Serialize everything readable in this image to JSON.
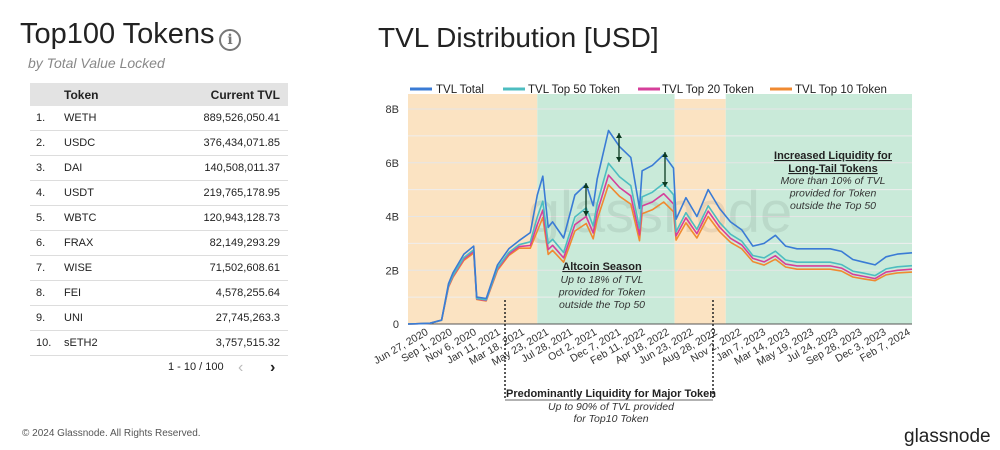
{
  "left_panel": {
    "title": "Top100 Tokens",
    "info_icon": "info-icon",
    "subtitle": "by Total Value Locked",
    "table": {
      "headers": [
        "",
        "Token",
        "Current TVL"
      ],
      "rows": [
        [
          "1.",
          "WETH",
          "889,526,050.41"
        ],
        [
          "2.",
          "USDC",
          "376,434,071.85"
        ],
        [
          "3.",
          "DAI",
          "140,508,011.37"
        ],
        [
          "4.",
          "USDT",
          "219,765,178.95"
        ],
        [
          "5.",
          "WBTC",
          "120,943,128.73"
        ],
        [
          "6.",
          "FRAX",
          "82,149,293.29"
        ],
        [
          "7.",
          "WISE",
          "71,502,608.61"
        ],
        [
          "8.",
          "FEI",
          "4,578,255.64"
        ],
        [
          "9.",
          "UNI",
          "27,745,263.3"
        ],
        [
          "10.",
          "sETH2",
          "3,757,515.32"
        ]
      ]
    },
    "pagination": {
      "label": "1 - 10 / 100",
      "prev": "‹",
      "next": "›"
    }
  },
  "footer": {
    "copyright": "© 2024 Glassnode. All Rights Reserved.",
    "logo": "glassnode"
  },
  "chart_data": {
    "type": "line",
    "title": "TVL Distribution [USD]",
    "watermark": "glassnode",
    "legend_position": "top",
    "grid": true,
    "colors": {
      "TVL Total": "#3a7bd5",
      "TVL Top 50 Token": "#4dbdc0",
      "TVL Top 20 Token": "#d63f9a",
      "TVL Top 10 Token": "#f08a30",
      "orange_band": "#fbe3c2",
      "green_band": "#c9ead9"
    },
    "ylim": [
      0,
      8
    ],
    "y_ticks": [
      {
        "v": 0,
        "label": "0"
      },
      {
        "v": 2,
        "label": "2B"
      },
      {
        "v": 4,
        "label": "4B"
      },
      {
        "v": 6,
        "label": "6B"
      },
      {
        "v": 8,
        "label": "8B"
      }
    ],
    "x_range": [
      "2020-05-01",
      "2024-02-10"
    ],
    "x_ticks": [
      {
        "d": "2020-06-27",
        "label": "Jun 27, 2020"
      },
      {
        "d": "2020-09-01",
        "label": "Sep 1, 2020"
      },
      {
        "d": "2020-11-06",
        "label": "Nov 6, 2020"
      },
      {
        "d": "2021-01-11",
        "label": "Jan 11, 2021"
      },
      {
        "d": "2021-03-18",
        "label": "Mar 18, 2021"
      },
      {
        "d": "2021-05-23",
        "label": "May 23, 2021"
      },
      {
        "d": "2021-07-28",
        "label": "Jul 28, 2021"
      },
      {
        "d": "2021-10-02",
        "label": "Oct 2, 2021"
      },
      {
        "d": "2021-12-07",
        "label": "Dec 7, 2021"
      },
      {
        "d": "2022-02-11",
        "label": "Feb 11, 2022"
      },
      {
        "d": "2022-04-18",
        "label": "Apr 18, 2022"
      },
      {
        "d": "2022-06-23",
        "label": "Jun 23, 2022"
      },
      {
        "d": "2022-08-28",
        "label": "Aug 28, 2022"
      },
      {
        "d": "2022-11-02",
        "label": "Nov 2, 2022"
      },
      {
        "d": "2023-01-07",
        "label": "Jan 7, 2023"
      },
      {
        "d": "2023-03-14",
        "label": "Mar 14, 2023"
      },
      {
        "d": "2023-05-19",
        "label": "May 19, 2023"
      },
      {
        "d": "2023-07-24",
        "label": "Jul 24, 2023"
      },
      {
        "d": "2023-09-28",
        "label": "Sep 28, 2023"
      },
      {
        "d": "2023-12-03",
        "label": "Dec 3, 2023"
      },
      {
        "d": "2024-02-07",
        "label": "Feb 7, 2024"
      }
    ],
    "bands": [
      {
        "from": "2020-05-01",
        "to": "2021-04-20",
        "color": "orange"
      },
      {
        "from": "2021-04-20",
        "to": "2022-05-01",
        "color": "green"
      },
      {
        "from": "2022-05-01",
        "to": "2022-09-18",
        "color": "orange"
      },
      {
        "from": "2022-09-18",
        "to": "2024-02-10",
        "color": "green"
      }
    ],
    "x": [
      "2020-05-01",
      "2020-06-01",
      "2020-07-01",
      "2020-08-01",
      "2020-08-20",
      "2020-09-01",
      "2020-10-01",
      "2020-10-28",
      "2020-11-05",
      "2020-12-01",
      "2021-01-01",
      "2021-02-01",
      "2021-03-01",
      "2021-04-01",
      "2021-04-20",
      "2021-05-05",
      "2021-05-20",
      "2021-06-01",
      "2021-07-01",
      "2021-08-01",
      "2021-09-01",
      "2021-09-20",
      "2021-10-01",
      "2021-11-01",
      "2021-12-01",
      "2022-01-01",
      "2022-01-25",
      "2022-02-01",
      "2022-03-01",
      "2022-04-01",
      "2022-04-28",
      "2022-05-05",
      "2022-06-01",
      "2022-07-01",
      "2022-08-01",
      "2022-09-01",
      "2022-10-01",
      "2022-11-01",
      "2022-12-01",
      "2023-01-01",
      "2023-02-01",
      "2023-03-01",
      "2023-04-01",
      "2023-05-01",
      "2023-06-01",
      "2023-07-01",
      "2023-08-01",
      "2023-09-01",
      "2023-10-01",
      "2023-11-01",
      "2023-12-01",
      "2024-01-01",
      "2024-02-10"
    ],
    "series": [
      {
        "name": "TVL Total",
        "values": [
          0,
          0.01,
          0.03,
          0.15,
          1.5,
          1.9,
          2.6,
          2.9,
          1.0,
          0.95,
          2.2,
          2.8,
          3.1,
          3.4,
          4.8,
          5.5,
          3.6,
          3.8,
          3.2,
          4.8,
          5.2,
          4.4,
          5.4,
          7.2,
          6.6,
          6.2,
          4.3,
          5.7,
          5.9,
          6.3,
          5.8,
          3.9,
          4.7,
          4.0,
          5.0,
          4.3,
          3.8,
          3.5,
          2.9,
          3.0,
          3.3,
          2.9,
          2.8,
          2.8,
          2.8,
          2.8,
          2.7,
          2.4,
          2.3,
          2.2,
          2.5,
          2.6,
          2.65
        ]
      },
      {
        "name": "TVL Top 50 Token",
        "values": [
          0,
          0.01,
          0.03,
          0.14,
          1.43,
          1.81,
          2.47,
          2.76,
          0.95,
          0.9,
          2.09,
          2.66,
          2.95,
          3.06,
          3.98,
          4.57,
          2.99,
          3.15,
          2.66,
          3.98,
          4.32,
          3.65,
          4.48,
          5.98,
          5.48,
          5.15,
          3.57,
          4.73,
          4.9,
          5.23,
          4.81,
          3.43,
          4.14,
          3.52,
          4.4,
          3.78,
          3.34,
          3.08,
          2.55,
          2.46,
          2.71,
          2.38,
          2.3,
          2.3,
          2.3,
          2.3,
          2.21,
          1.97,
          1.89,
          1.8,
          2.05,
          2.13,
          2.17
        ]
      },
      {
        "name": "TVL Top 20 Token",
        "values": [
          0,
          0.01,
          0.03,
          0.14,
          1.4,
          1.77,
          2.42,
          2.7,
          0.93,
          0.88,
          2.05,
          2.6,
          2.88,
          2.92,
          3.7,
          4.24,
          2.77,
          2.93,
          2.46,
          3.7,
          4.0,
          3.39,
          4.16,
          5.54,
          5.08,
          4.77,
          3.31,
          4.39,
          4.54,
          4.85,
          4.47,
          3.28,
          3.95,
          3.36,
          4.2,
          3.61,
          3.19,
          2.94,
          2.44,
          2.31,
          2.54,
          2.23,
          2.16,
          2.16,
          2.16,
          2.16,
          2.08,
          1.85,
          1.77,
          1.69,
          1.93,
          2.0,
          2.04
        ]
      },
      {
        "name": "TVL Top 10 Token",
        "values": [
          0,
          0.01,
          0.03,
          0.14,
          1.37,
          1.73,
          2.37,
          2.64,
          0.91,
          0.86,
          2.0,
          2.55,
          2.82,
          2.82,
          3.46,
          3.96,
          2.59,
          2.74,
          2.3,
          3.46,
          3.74,
          3.17,
          3.89,
          5.18,
          4.75,
          4.46,
          3.1,
          4.1,
          4.25,
          4.54,
          4.18,
          3.12,
          3.76,
          3.2,
          4.0,
          3.44,
          3.04,
          2.8,
          2.32,
          2.19,
          2.41,
          2.12,
          2.04,
          2.04,
          2.04,
          2.04,
          1.97,
          1.75,
          1.68,
          1.61,
          1.83,
          1.9,
          1.93
        ]
      }
    ],
    "annotations": {
      "altcoin": {
        "title": "Altcoin Season",
        "lines": [
          "Up to 18% of TVL",
          "provided for Token",
          "outside the Top 50"
        ]
      },
      "longtail": {
        "title": [
          "Increased Liquidity for",
          "Long-Tail Tokens"
        ],
        "lines": [
          "More than 10% of TVL",
          "provided for Token",
          "outside the Top 50"
        ]
      },
      "major": {
        "title": "Predominantly Liquidity for Major Token",
        "lines": [
          "Up to 90% of TVL provided",
          "for Top10 Token"
        ]
      }
    }
  }
}
